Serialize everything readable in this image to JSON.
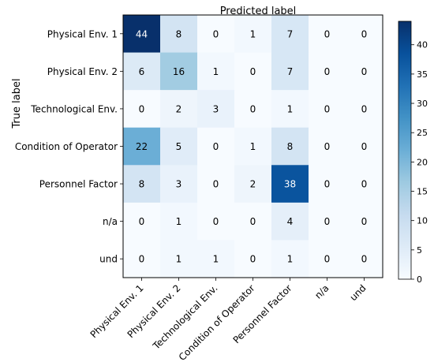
{
  "chart_data": {
    "type": "heatmap",
    "title": "Predicted label",
    "xlabel": "",
    "ylabel": "True label",
    "row_labels": [
      "Physical Env. 1",
      "Physical Env. 2",
      "Technological Env.",
      "Condition of Operator",
      "Personnel Factor",
      "n/a",
      "und"
    ],
    "col_labels": [
      "Physical Env. 1",
      "Physical Env. 2",
      "Technological Env.",
      "Condition of Operator",
      "Personnel Factor",
      "n/a",
      "und"
    ],
    "values": [
      [
        44,
        8,
        0,
        1,
        7,
        0,
        0
      ],
      [
        6,
        16,
        1,
        0,
        7,
        0,
        0
      ],
      [
        0,
        2,
        3,
        0,
        1,
        0,
        0
      ],
      [
        22,
        5,
        0,
        1,
        8,
        0,
        0
      ],
      [
        8,
        3,
        0,
        2,
        38,
        0,
        0
      ],
      [
        0,
        1,
        0,
        0,
        4,
        0,
        0
      ],
      [
        0,
        1,
        1,
        0,
        1,
        0,
        0
      ]
    ],
    "colormap": "Blues",
    "colorbar": {
      "range": [
        0,
        44
      ],
      "ticks": [
        0,
        5,
        10,
        15,
        20,
        25,
        30,
        35,
        40
      ],
      "tick_labels": [
        "0",
        "5",
        "10",
        "15",
        "20",
        "25",
        "30",
        "35",
        "40"
      ]
    },
    "grid": false,
    "legend": "right colorbar"
  }
}
